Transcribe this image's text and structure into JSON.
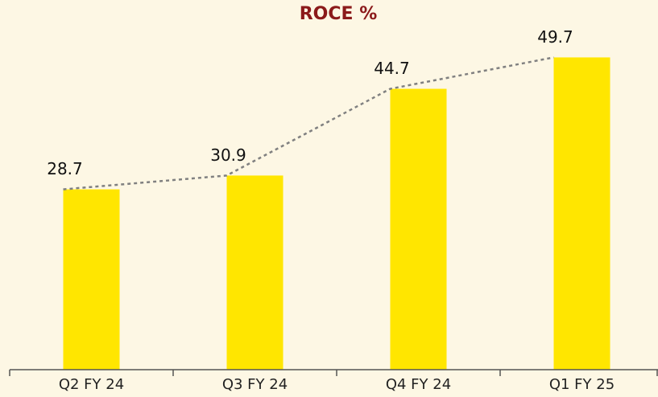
{
  "chart_data": {
    "type": "bar",
    "title": "ROCE %",
    "categories": [
      "Q2 FY 24",
      "Q3 FY 24",
      "Q4 FY 24",
      "Q1 FY 25"
    ],
    "values": [
      28.7,
      30.9,
      44.7,
      49.7
    ],
    "color": "#ffe600",
    "line_color": "#808080",
    "ylim": [
      0,
      55
    ]
  }
}
